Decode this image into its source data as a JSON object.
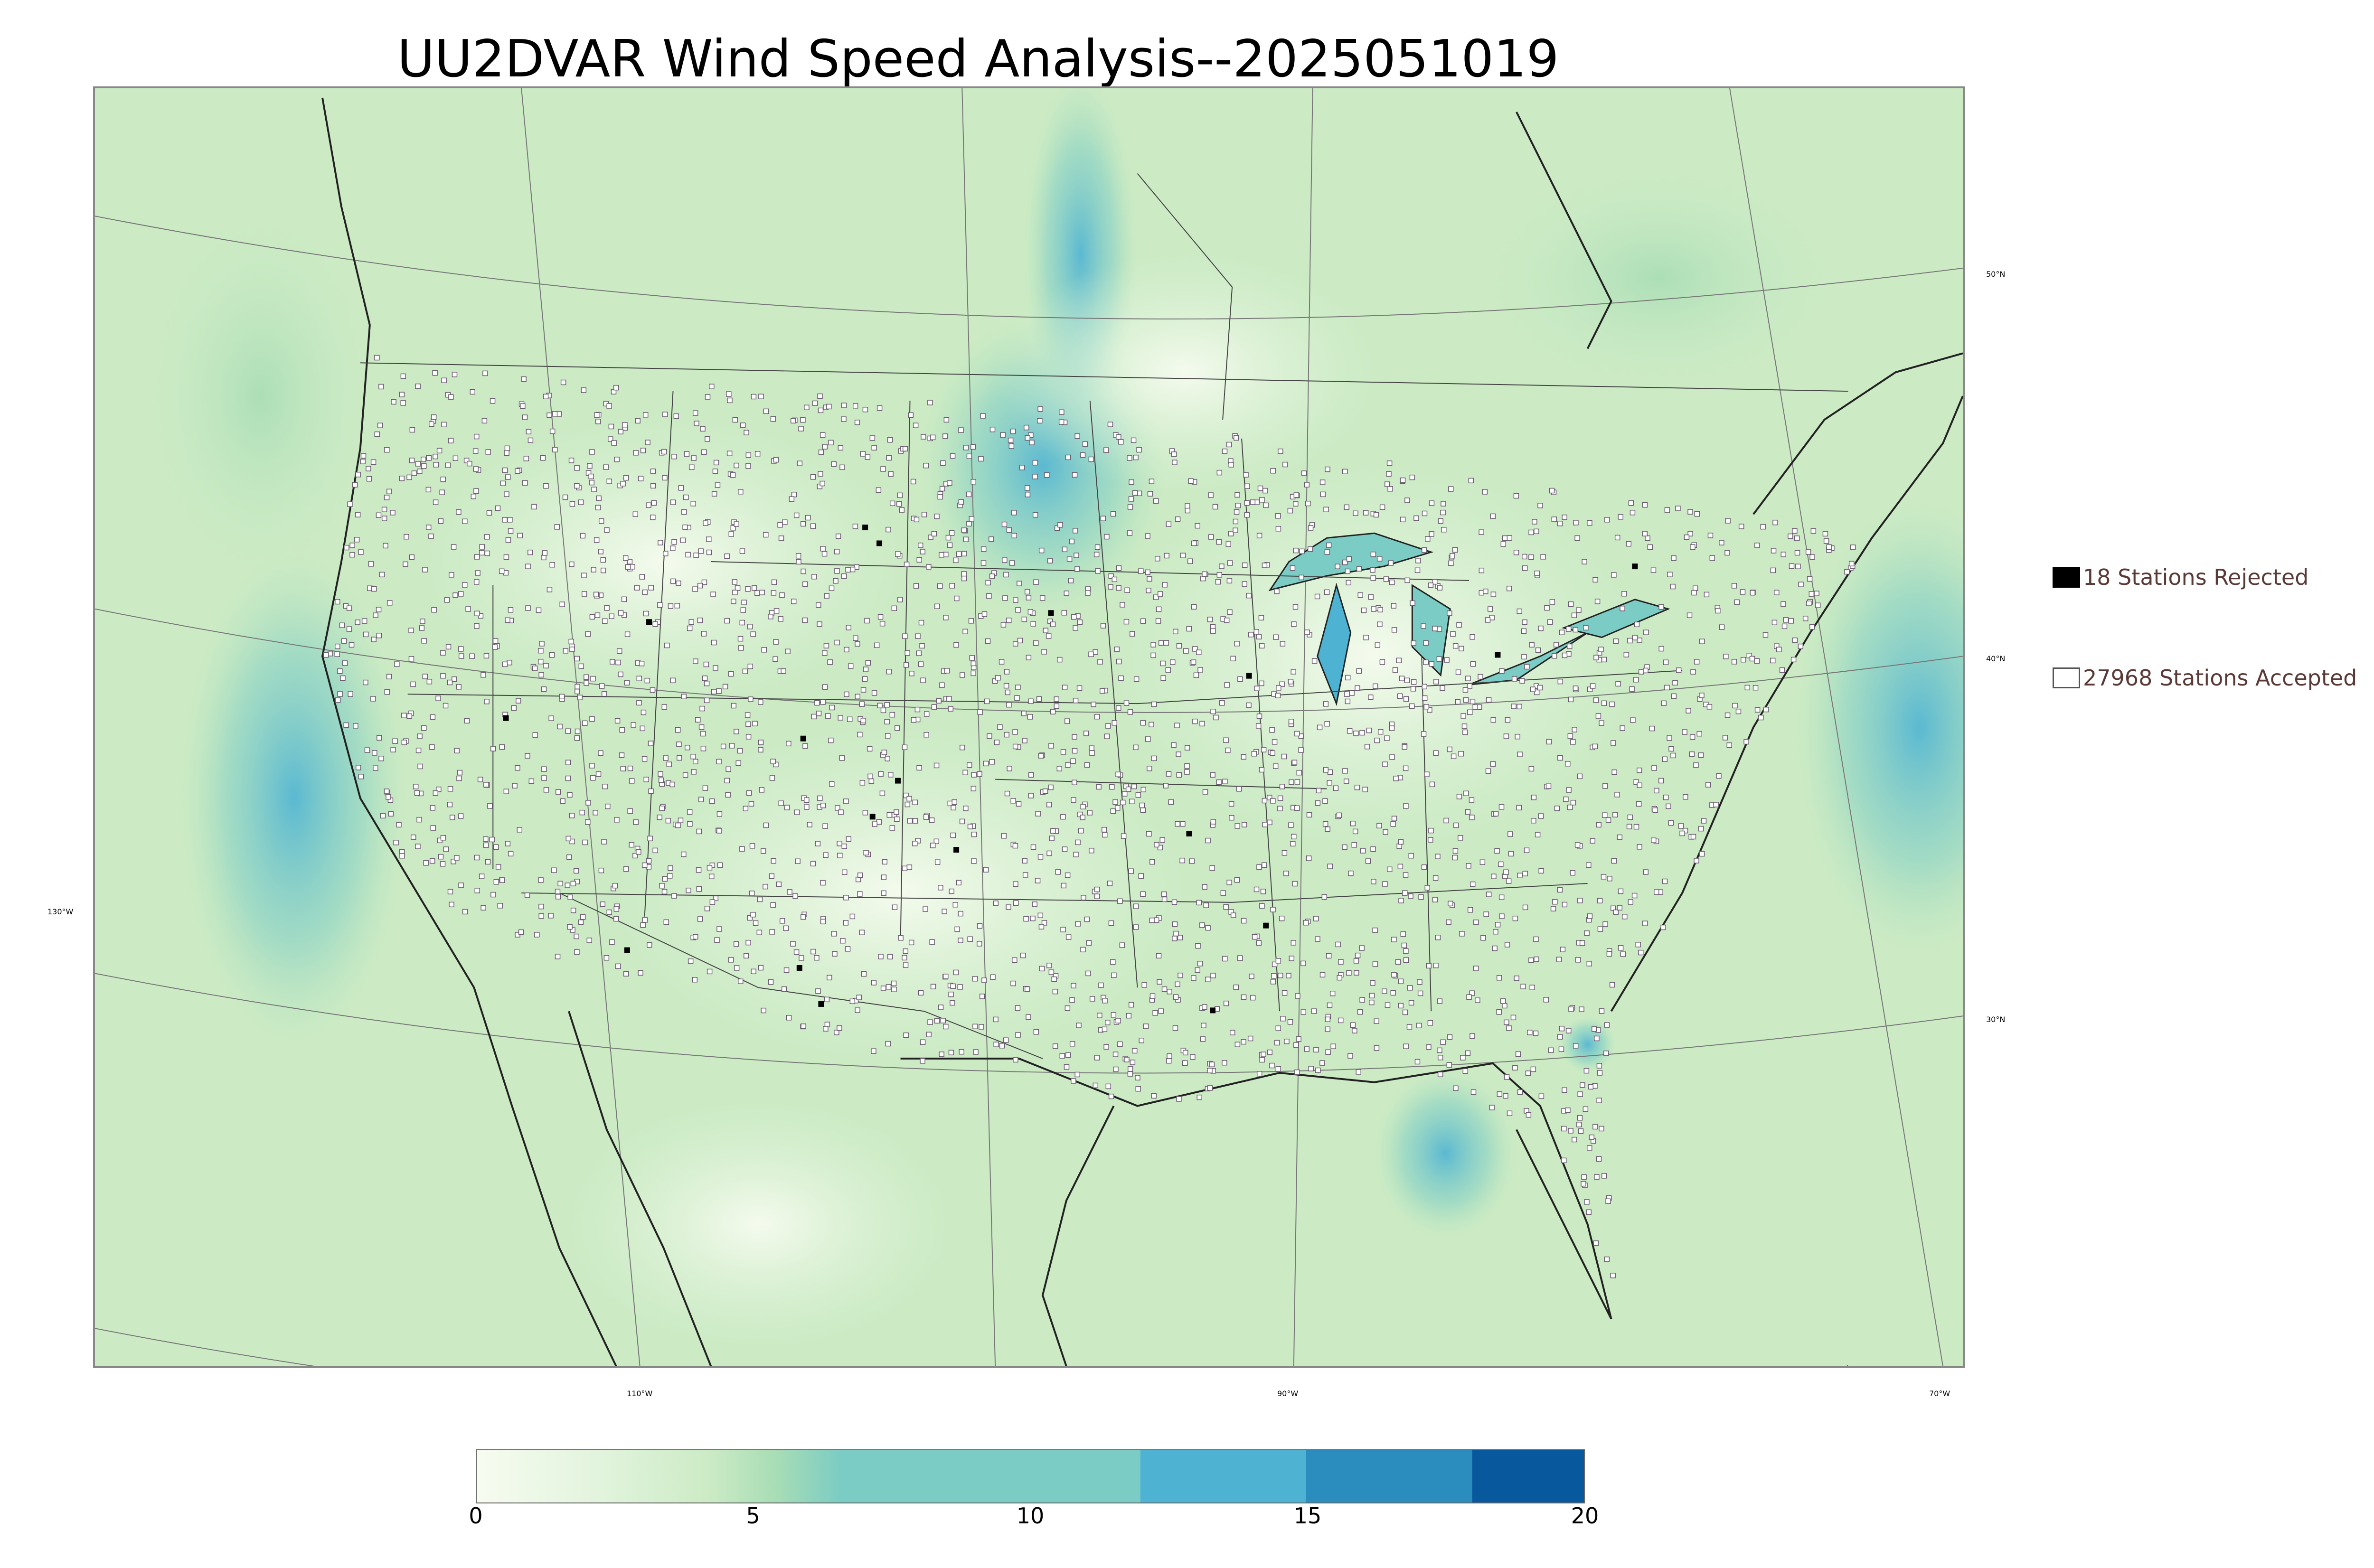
{
  "title": "UU2DVAR Wind Speed Analysis--2025051019",
  "map": {
    "latitude_labels": [
      "50°N",
      "40°N",
      "30°N"
    ],
    "longitude_labels": [
      "130°W",
      "110°W",
      "90°W",
      "70°W"
    ],
    "field": "wind speed analysis",
    "colors": {
      "low": "#f7fcf0",
      "mid": "#a8ddb5",
      "high": "#2b8cbe",
      "max": "#08589e"
    }
  },
  "legend": {
    "rejected_label": "18 Stations Rejected",
    "accepted_label": "27968 Stations Accepted",
    "rejected_count": 18,
    "accepted_count": 27968,
    "rejected_color": "#000000",
    "accepted_color": "#ffffff"
  },
  "colorbar": {
    "ticks": [
      "0",
      "5",
      "10",
      "15",
      "20"
    ],
    "min": 0,
    "max": 20,
    "colors": [
      "#f7fcf0",
      "#e0f3db",
      "#ccebc5",
      "#a8ddb5",
      "#7bccc4",
      "#4eb3d3",
      "#2b8cbe",
      "#08589e"
    ]
  }
}
